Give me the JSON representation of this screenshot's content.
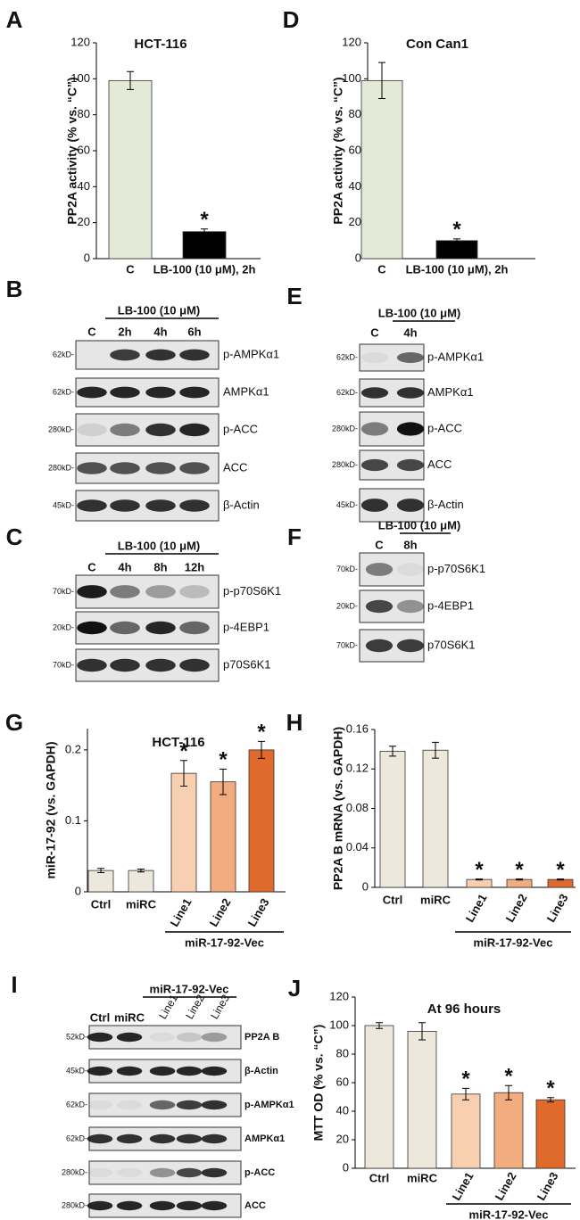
{
  "chart_data": [
    {
      "type": "bar",
      "panel": "A",
      "title": "HCT-116",
      "ylabel": "PP2A activity (% vs. “C”)",
      "categories": [
        "C",
        "LB-100 (10 μM), 2h"
      ],
      "values": [
        99,
        15
      ],
      "errors": [
        5,
        1.5
      ],
      "colors": [
        "#e3ebd8",
        "#000000"
      ],
      "markers": [
        null,
        "*"
      ],
      "ylim": [
        0,
        120
      ],
      "yticks": [
        0,
        20,
        40,
        60,
        80,
        100,
        120
      ]
    },
    {
      "type": "bar",
      "panel": "D",
      "title": "Con Can1",
      "ylabel": "PP2A activity (% vs. “C”)",
      "categories": [
        "C",
        "LB-100 (10 μM), 2h"
      ],
      "values": [
        99,
        10
      ],
      "errors": [
        10,
        1
      ],
      "colors": [
        "#e3ebd8",
        "#000000"
      ],
      "markers": [
        null,
        "*"
      ],
      "ylim": [
        0,
        120
      ],
      "yticks": [
        0,
        20,
        40,
        60,
        80,
        100,
        120
      ]
    },
    {
      "type": "bar",
      "panel": "G",
      "title": "HCT-116",
      "ylabel": "miR-17-92 (vs. GAPDH)",
      "categories": [
        "Ctrl",
        "miRC",
        "Line1",
        "Line2",
        "Line3"
      ],
      "values": [
        0.03,
        0.03,
        0.167,
        0.155,
        0.2
      ],
      "errors": [
        0.003,
        0.002,
        0.018,
        0.018,
        0.012
      ],
      "colors": [
        "#ede8dc",
        "#ede8dc",
        "#f8cfb0",
        "#f3ab80",
        "#e06a2c"
      ],
      "markers": [
        null,
        null,
        "*",
        "*",
        "*"
      ],
      "group_label": "miR-17-92-Vec",
      "ylim": [
        0,
        0.23
      ],
      "yticks": [
        0,
        0.1,
        0.2
      ]
    },
    {
      "type": "bar",
      "panel": "H",
      "ylabel": "PP2A B mRNA (vs. GAPDH)",
      "categories": [
        "Ctrl",
        "miRC",
        "Line1",
        "Line2",
        "Line3"
      ],
      "values": [
        0.138,
        0.139,
        0.008,
        0.008,
        0.008
      ],
      "errors": [
        0.005,
        0.008,
        0.0005,
        0.0005,
        0.0005
      ],
      "colors": [
        "#ede8dc",
        "#ede8dc",
        "#f8cfb0",
        "#f3ab80",
        "#e06a2c"
      ],
      "markers": [
        null,
        null,
        "*",
        "*",
        "*"
      ],
      "group_label": "miR-17-92-Vec",
      "ylim": [
        0,
        0.16
      ],
      "yticks": [
        0,
        0.04,
        0.08,
        0.12,
        0.16
      ]
    },
    {
      "type": "bar",
      "panel": "J",
      "title": "At 96 hours",
      "ylabel": "MTT OD (% vs. “C”)",
      "categories": [
        "Ctrl",
        "miRC",
        "Line1",
        "Line2",
        "Line3"
      ],
      "values": [
        100,
        96,
        52,
        53,
        48
      ],
      "errors": [
        2,
        6,
        4,
        5,
        1.5
      ],
      "colors": [
        "#ede8dc",
        "#ede8dc",
        "#f8cfb0",
        "#f3ab80",
        "#e06a2c"
      ],
      "markers": [
        null,
        null,
        "*",
        "*",
        "*"
      ],
      "group_label": "miR-17-92-Vec",
      "ylim": [
        0,
        120
      ],
      "yticks": [
        0,
        20,
        40,
        60,
        80,
        100,
        120
      ]
    }
  ],
  "blots": [
    {
      "panel": "B",
      "treatment": "LB-100 (10 μM)",
      "lanes": [
        "C",
        "2h",
        "4h",
        "6h"
      ],
      "rows": [
        {
          "mw": "62kD-",
          "label": "p-AMPKα1",
          "bands": [
            0,
            0.8,
            0.85,
            0.85
          ]
        },
        {
          "mw": "62kD-",
          "label": "AMPKα1",
          "bands": [
            0.9,
            0.9,
            0.9,
            0.9
          ]
        },
        {
          "mw": "280kD-",
          "label": "p-ACC",
          "bands": [
            0.1,
            0.5,
            0.85,
            0.9
          ]
        },
        {
          "mw": "280kD-",
          "label": "ACC",
          "bands": [
            0.7,
            0.7,
            0.7,
            0.7
          ]
        },
        {
          "mw": "45kD-",
          "label": "β-Actin",
          "bands": [
            0.85,
            0.85,
            0.85,
            0.85
          ]
        }
      ]
    },
    {
      "panel": "E",
      "treatment": "LB-100 (10 μM)",
      "lanes": [
        "C",
        "4h"
      ],
      "rows": [
        {
          "mw": "62kD-",
          "label": "p-AMPKα1",
          "bands": [
            0.05,
            0.6
          ]
        },
        {
          "mw": "62kD-",
          "label": "AMPKα1",
          "bands": [
            0.85,
            0.85
          ]
        },
        {
          "mw": "280kD-",
          "label": "p-ACC",
          "bands": [
            0.5,
            1
          ]
        },
        {
          "mw": "280kD-",
          "label": "ACC",
          "bands": [
            0.75,
            0.75
          ]
        },
        {
          "mw": "45kD-",
          "label": "β-Actin",
          "bands": [
            0.85,
            0.85
          ]
        }
      ]
    },
    {
      "panel": "C",
      "treatment": "LB-100 (10 μM)",
      "lanes": [
        "C",
        "4h",
        "8h",
        "12h"
      ],
      "rows": [
        {
          "mw": "70kD-",
          "label": "p-p70S6K1",
          "bands": [
            0.95,
            0.5,
            0.35,
            0.2
          ]
        },
        {
          "mw": "20kD-",
          "label": "p-4EBP1",
          "bands": [
            1,
            0.6,
            0.9,
            0.6
          ]
        },
        {
          "mw": "70kD-",
          "label": "p70S6K1",
          "bands": [
            0.85,
            0.85,
            0.85,
            0.85
          ]
        }
      ]
    },
    {
      "panel": "F",
      "treatment": "LB-100 (10 μM)",
      "lanes": [
        "C",
        "8h"
      ],
      "rows": [
        {
          "mw": "70kD-",
          "label": "p-p70S6K1",
          "bands": [
            0.5,
            0.05
          ]
        },
        {
          "mw": "20kD-",
          "label": "p-4EBP1",
          "bands": [
            0.75,
            0.4
          ]
        },
        {
          "mw": "70kD-",
          "label": "p70S6K1",
          "bands": [
            0.8,
            0.8
          ]
        }
      ]
    },
    {
      "panel": "I",
      "treatment": "miR-17-92-Vec",
      "lanes": [
        "Ctrl",
        "miRC",
        "Line1",
        "Line2",
        "Line3"
      ],
      "rows": [
        {
          "mw": "52kD-",
          "label": "PP2A B",
          "bands": [
            0.9,
            0.9,
            0.05,
            0.15,
            0.35
          ]
        },
        {
          "mw": "45kD-",
          "label": "β-Actin",
          "bands": [
            0.9,
            0.9,
            0.9,
            0.9,
            0.9
          ]
        },
        {
          "mw": "62kD-",
          "label": "p-AMPKα1",
          "bands": [
            0.05,
            0.05,
            0.6,
            0.8,
            0.85
          ]
        },
        {
          "mw": "62kD-",
          "label": "AMPKα1",
          "bands": [
            0.85,
            0.85,
            0.85,
            0.85,
            0.85
          ]
        },
        {
          "mw": "280kD-",
          "label": "p-ACC",
          "bands": [
            0.05,
            0.05,
            0.4,
            0.75,
            0.85
          ]
        },
        {
          "mw": "280kD-",
          "label": "ACC",
          "bands": [
            0.9,
            0.9,
            0.9,
            0.9,
            0.9
          ]
        }
      ]
    }
  ]
}
